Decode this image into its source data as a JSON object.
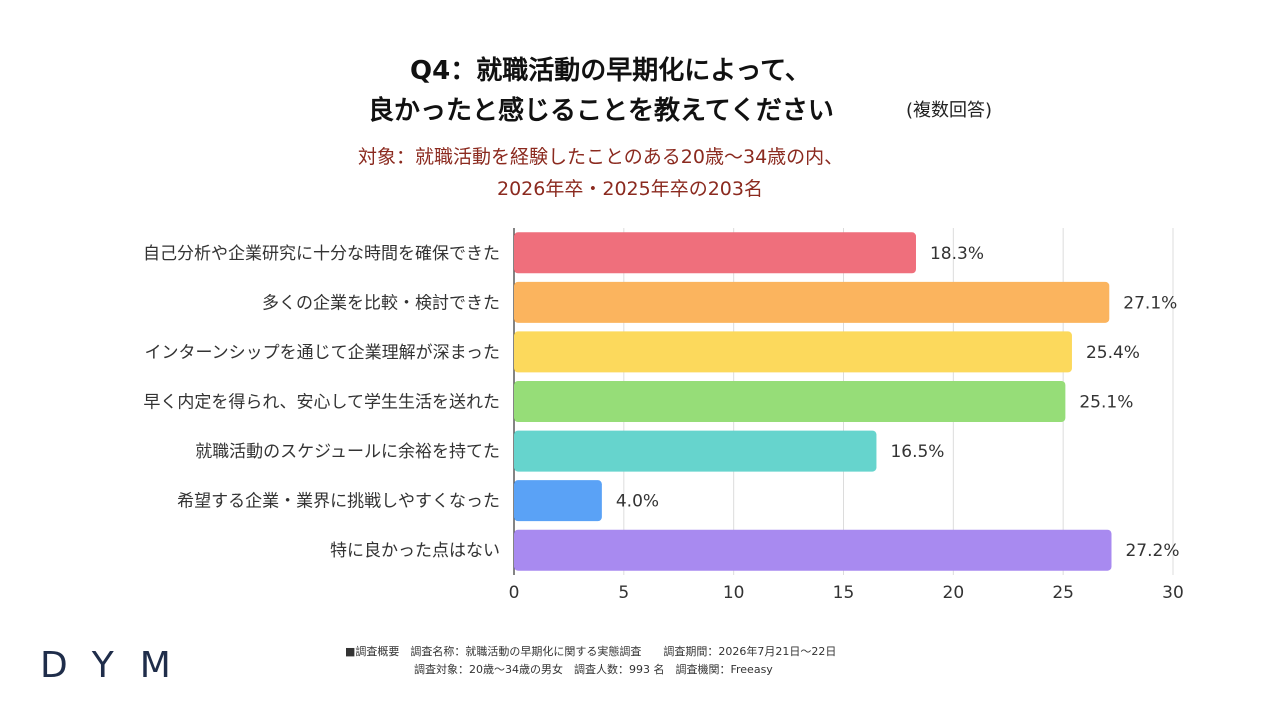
{
  "header": {
    "title_line1": "Q4：就職活動の早期化によって、",
    "title_line2": "良かったと感じることを教えてください",
    "title_note": "(複数回答)",
    "subtitle_line1": "対象：就職活動を経験したことのある20歳〜34歳の内、",
    "subtitle_line2": "2026年卒・2025年卒の203名"
  },
  "chart_data": {
    "type": "bar",
    "orientation": "horizontal",
    "categories": [
      "自己分析や企業研究に十分な時間を確保できた",
      "多くの企業を比較・検討できた",
      "インターンシップを通じて企業理解が深まった",
      "早く内定を得られ、安心して学生生活を送れた",
      "就職活動のスケジュールに余裕を持てた",
      "希望する企業・業界に挑戦しやすくなった",
      "特に良かった点はない"
    ],
    "values": [
      18.3,
      27.1,
      25.4,
      25.1,
      16.5,
      4.0,
      27.2
    ],
    "value_labels": [
      "18.3%",
      "27.1%",
      "25.4%",
      "25.1%",
      "16.5%",
      "4.0%",
      "27.2%"
    ],
    "colors": [
      "#ef6f7c",
      "#fbb45e",
      "#fcd95c",
      "#96dd78",
      "#66d4cd",
      "#5aa2f6",
      "#a88af0"
    ],
    "xlim": [
      0,
      30
    ],
    "xticks": [
      "0",
      "5",
      "10",
      "15",
      "20",
      "25",
      "30"
    ],
    "grid": true
  },
  "footer": {
    "line1": "■調査概要　調査名称：就職活動の早期化に関する実態調査　　調査期間：2026年7月21日〜22日",
    "line2": "調査対象：20歳〜34歳の男女　調査人数：993 名　調査機関：Freeasy"
  },
  "logo": {
    "text": "DYM"
  }
}
